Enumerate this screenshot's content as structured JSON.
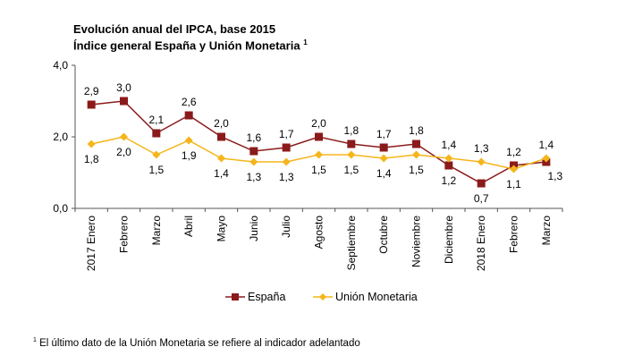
{
  "chart_data": {
    "type": "line",
    "title": "Evolución anual del IPCA, base 2015",
    "subtitle": "Índice general España y Unión Monetaria",
    "subtitle_footnote_mark": "1",
    "xlabel": "",
    "ylabel": "",
    "ylim": [
      0,
      4
    ],
    "yticks": [
      "0,0",
      "2,0",
      "4,0"
    ],
    "ytick_values": [
      0,
      2,
      4
    ],
    "grid": false,
    "categories": [
      "2017 Enero",
      "Febrero",
      "Marzo",
      "Abril",
      "Mayo",
      "Junio",
      "Julio",
      "Agosto",
      "Septiembre",
      "Octubre",
      "Noviembre",
      "Diciembre",
      "2018 Enero",
      "Febrero",
      "Marzo"
    ],
    "series": [
      {
        "name": "España",
        "color": "#8b1a1a",
        "marker": "square",
        "values": [
          2.9,
          3.0,
          2.1,
          2.6,
          2.0,
          1.6,
          1.7,
          2.0,
          1.8,
          1.7,
          1.8,
          1.2,
          0.7,
          1.2,
          1.3
        ],
        "labels": [
          "2,9",
          "3,0",
          "2,1",
          "2,6",
          "2,0",
          "1,6",
          "1,7",
          "2,0",
          "1,8",
          "1,7",
          "1,8",
          "1,2",
          "0,7",
          "1,2",
          "1,3"
        ],
        "label_pos": [
          "above",
          "above",
          "above",
          "above",
          "above",
          "above",
          "above",
          "above",
          "above",
          "above",
          "above",
          "below",
          "below",
          "above",
          "below-right"
        ]
      },
      {
        "name": "Unión Monetaria",
        "color": "#f5b51b",
        "marker": "diamond",
        "values": [
          1.8,
          2.0,
          1.5,
          1.9,
          1.4,
          1.3,
          1.3,
          1.5,
          1.5,
          1.4,
          1.5,
          1.4,
          1.3,
          1.1,
          1.4
        ],
        "labels": [
          "1,8",
          "2,0",
          "1,5",
          "1,9",
          "1,4",
          "1,3",
          "1,3",
          "1,5",
          "1,5",
          "1,4",
          "1,5",
          "1,4",
          "1,3",
          "1,1",
          "1,4"
        ],
        "label_pos": [
          "below",
          "below",
          "below",
          "below",
          "below",
          "below",
          "below",
          "below",
          "below",
          "below",
          "below",
          "above",
          "above",
          "below",
          "above"
        ]
      }
    ],
    "legend": "bottom"
  },
  "footnote": {
    "mark": "1",
    "text": "El último dato de la Unión Monetaria se refiere al indicador adelantado"
  }
}
